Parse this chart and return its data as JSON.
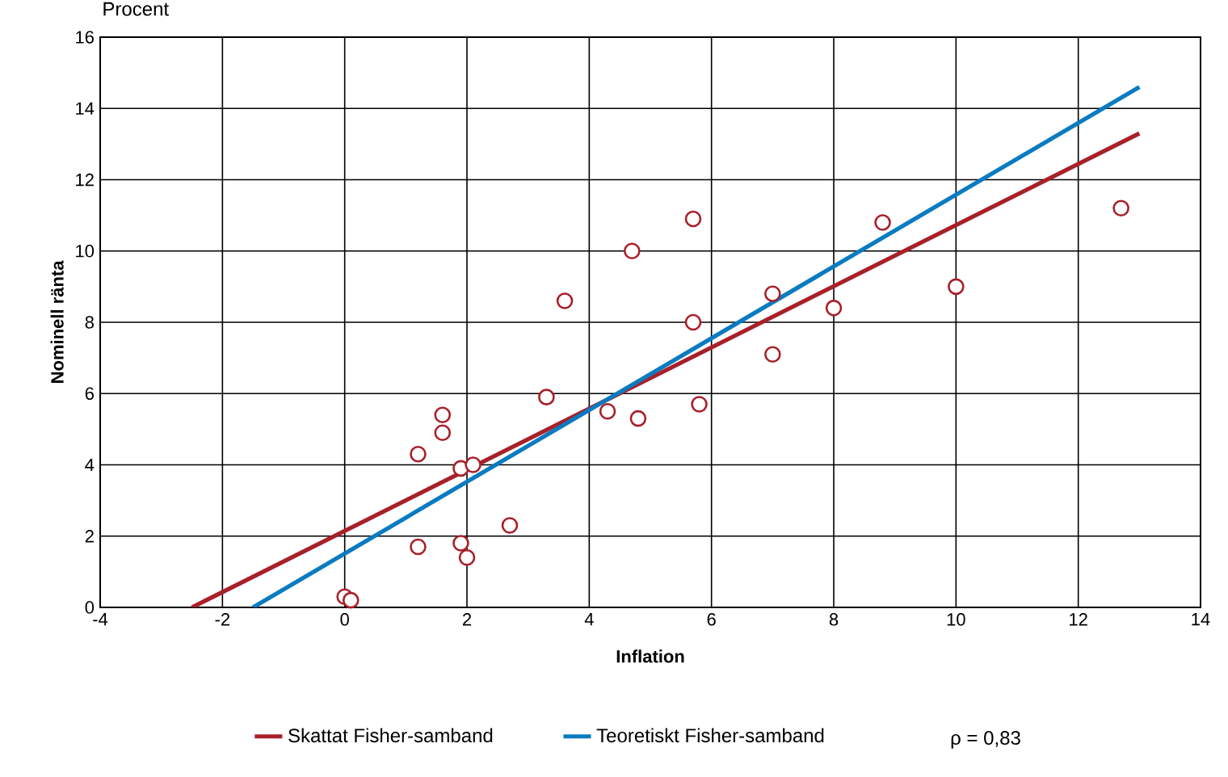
{
  "chart_data": {
    "type": "scatter",
    "xlabel": "Inflation",
    "ylabel": "Nominell ränta",
    "annotations": [
      "Procent",
      "ρ = 0,83"
    ],
    "xlim": [
      -4,
      14
    ],
    "ylim": [
      0,
      16
    ],
    "xticks": [
      -4,
      -2,
      0,
      2,
      4,
      6,
      8,
      10,
      12,
      14
    ],
    "yticks": [
      0,
      2,
      4,
      6,
      8,
      10,
      12,
      14,
      16
    ],
    "grid": true,
    "legend": "bottom",
    "marker": "circle",
    "series": [
      {
        "color": "#a8202a",
        "x": [
          0.0,
          0.1,
          1.2,
          1.2,
          1.6,
          1.6,
          1.9,
          2.1,
          1.9,
          2.0,
          2.7,
          3.3,
          3.6,
          4.3,
          4.8,
          4.7,
          5.7,
          5.7,
          5.8,
          7.0,
          7.0,
          8.0,
          8.8,
          10.0,
          12.7
        ],
        "values": [
          0.3,
          0.2,
          4.3,
          1.7,
          5.4,
          4.9,
          3.9,
          4.0,
          1.8,
          1.4,
          2.3,
          5.9,
          8.6,
          5.5,
          5.3,
          10.0,
          10.9,
          8.0,
          5.7,
          8.8,
          7.1,
          8.4,
          10.8,
          9.0,
          11.2
        ]
      },
      {
        "type": "line",
        "name": "Skattat Fisher-samband",
        "color": "#a8202a",
        "marker": "none",
        "x": [
          -2.5,
          13
        ],
        "values": [
          0,
          13.3
        ]
      },
      {
        "type": "line",
        "name": "Teoretiskt Fisher-samband",
        "color": "#0a7bc1",
        "marker": "none",
        "x": [
          -1.5,
          13
        ],
        "values": [
          0,
          14.6
        ]
      }
    ]
  }
}
